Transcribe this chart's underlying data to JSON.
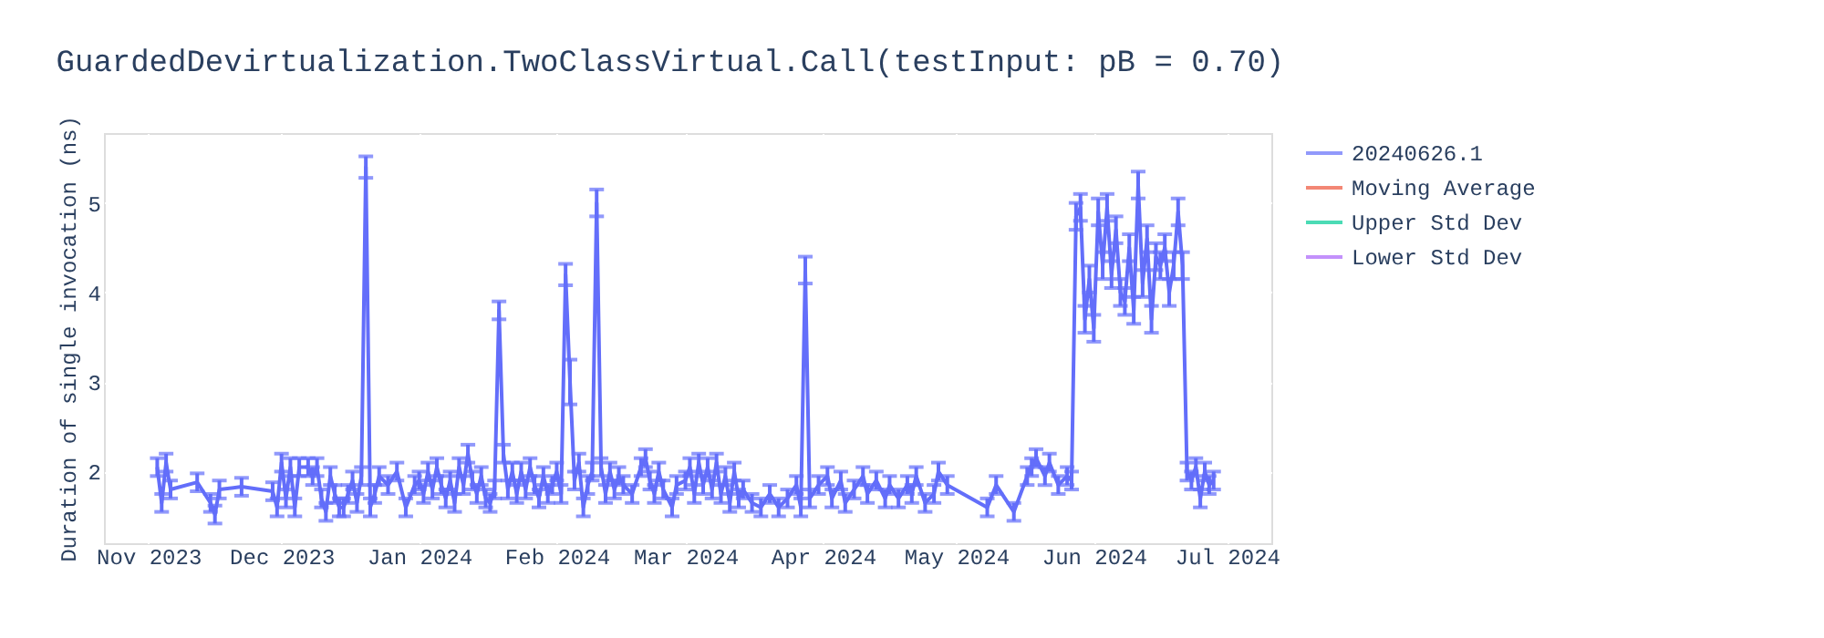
{
  "chart_data": {
    "type": "line",
    "title": "GuardedDevirtualization.TwoClassVirtual.Call(testInput: pB = 0.70)",
    "ylabel": "Duration of single invocation (ns)",
    "x": [
      "2023-11-03",
      "2023-11-04",
      "2023-11-05",
      "2023-11-06",
      "2023-11-12",
      "2023-11-15",
      "2023-11-16",
      "2023-11-17",
      "2023-11-22",
      "2023-11-29",
      "2023-11-30",
      "2023-12-01",
      "2023-12-02",
      "2023-12-03",
      "2023-12-04",
      "2023-12-05",
      "2023-12-07",
      "2023-12-08",
      "2023-12-09",
      "2023-12-10",
      "2023-12-11",
      "2023-12-12",
      "2023-12-13",
      "2023-12-14",
      "2023-12-15",
      "2023-12-16",
      "2023-12-17",
      "2023-12-18",
      "2023-12-19",
      "2023-12-20",
      "2023-12-21",
      "2023-12-22",
      "2023-12-23",
      "2023-12-25",
      "2023-12-27",
      "2023-12-29",
      "2023-12-31",
      "2024-01-01",
      "2024-01-02",
      "2024-01-03",
      "2024-01-04",
      "2024-01-05",
      "2024-01-06",
      "2024-01-07",
      "2024-01-08",
      "2024-01-09",
      "2024-01-10",
      "2024-01-11",
      "2024-01-12",
      "2024-01-13",
      "2024-01-14",
      "2024-01-15",
      "2024-01-16",
      "2024-01-17",
      "2024-01-18",
      "2024-01-19",
      "2024-01-20",
      "2024-01-21",
      "2024-01-22",
      "2024-01-23",
      "2024-01-24",
      "2024-01-25",
      "2024-01-26",
      "2024-01-27",
      "2024-01-28",
      "2024-01-29",
      "2024-01-30",
      "2024-01-31",
      "2024-02-01",
      "2024-02-02",
      "2024-02-03",
      "2024-02-04",
      "2024-02-05",
      "2024-02-06",
      "2024-02-07",
      "2024-02-08",
      "2024-02-09",
      "2024-02-10",
      "2024-02-11",
      "2024-02-12",
      "2024-02-13",
      "2024-02-14",
      "2024-02-15",
      "2024-02-16",
      "2024-02-18",
      "2024-02-20",
      "2024-02-21",
      "2024-02-22",
      "2024-02-23",
      "2024-02-24",
      "2024-02-25",
      "2024-02-27",
      "2024-02-28",
      "2024-03-01",
      "2024-03-02",
      "2024-03-03",
      "2024-03-04",
      "2024-03-05",
      "2024-03-06",
      "2024-03-07",
      "2024-03-08",
      "2024-03-09",
      "2024-03-10",
      "2024-03-11",
      "2024-03-12",
      "2024-03-13",
      "2024-03-14",
      "2024-03-16",
      "2024-03-18",
      "2024-03-20",
      "2024-03-22",
      "2024-03-24",
      "2024-03-26",
      "2024-03-27",
      "2024-03-28",
      "2024-03-29",
      "2024-03-31",
      "2024-04-02",
      "2024-04-03",
      "2024-04-05",
      "2024-04-06",
      "2024-04-08",
      "2024-04-10",
      "2024-04-11",
      "2024-04-13",
      "2024-04-15",
      "2024-04-16",
      "2024-04-18",
      "2024-04-20",
      "2024-04-21",
      "2024-04-22",
      "2024-04-24",
      "2024-04-26",
      "2024-04-27",
      "2024-04-29",
      "2024-05-08",
      "2024-05-10",
      "2024-05-14",
      "2024-05-17",
      "2024-05-18",
      "2024-05-19",
      "2024-05-21",
      "2024-05-22",
      "2024-05-24",
      "2024-05-26",
      "2024-05-27",
      "2024-05-28",
      "2024-05-29",
      "2024-05-30",
      "2024-05-31",
      "2024-06-01",
      "2024-06-02",
      "2024-06-03",
      "2024-06-04",
      "2024-06-05",
      "2024-06-06",
      "2024-06-07",
      "2024-06-08",
      "2024-06-09",
      "2024-06-10",
      "2024-06-11",
      "2024-06-12",
      "2024-06-13",
      "2024-06-14",
      "2024-06-15",
      "2024-06-16",
      "2024-06-17",
      "2024-06-18",
      "2024-06-19",
      "2024-06-20",
      "2024-06-21",
      "2024-06-22",
      "2024-06-23",
      "2024-06-24",
      "2024-06-25",
      "2024-06-26",
      "2024-06-27",
      "2024-06-28"
    ],
    "series": [
      {
        "name": "20240626.1",
        "color": "#636efa",
        "values": [
          2.05,
          1.65,
          2.1,
          1.8,
          1.88,
          1.65,
          1.52,
          1.8,
          1.83,
          1.78,
          1.6,
          2.1,
          1.7,
          2.05,
          1.6,
          2.05,
          2.05,
          1.95,
          2.05,
          1.7,
          1.55,
          1.95,
          1.75,
          1.6,
          1.6,
          1.75,
          1.9,
          1.65,
          1.95,
          5.4,
          1.6,
          1.75,
          1.95,
          1.85,
          2.0,
          1.6,
          1.85,
          1.9,
          1.75,
          2.0,
          1.8,
          2.05,
          1.85,
          1.7,
          1.9,
          1.65,
          2.05,
          1.85,
          2.2,
          1.9,
          1.75,
          1.95,
          1.7,
          1.65,
          1.8,
          3.8,
          2.2,
          1.8,
          2.0,
          1.75,
          2.0,
          1.8,
          2.05,
          1.85,
          1.7,
          1.95,
          1.75,
          1.85,
          2.0,
          1.75,
          4.2,
          3.0,
          1.9,
          2.1,
          1.6,
          1.85,
          2.0,
          5.0,
          2.05,
          1.75,
          2.0,
          1.8,
          1.95,
          1.85,
          1.75,
          2.05,
          2.15,
          1.9,
          1.75,
          2.0,
          1.8,
          1.6,
          1.85,
          1.9,
          2.05,
          1.75,
          2.1,
          1.85,
          2.05,
          1.8,
          2.1,
          1.75,
          1.95,
          1.65,
          2.0,
          1.7,
          1.8,
          1.65,
          1.6,
          1.75,
          1.6,
          1.7,
          1.85,
          1.6,
          4.25,
          1.7,
          1.85,
          1.95,
          1.7,
          1.9,
          1.65,
          1.8,
          1.95,
          1.75,
          1.9,
          1.7,
          1.85,
          1.7,
          1.85,
          1.75,
          1.95,
          1.65,
          1.75,
          2.0,
          1.85,
          1.6,
          1.85,
          1.55,
          1.95,
          2.05,
          2.15,
          1.95,
          2.1,
          1.85,
          1.95,
          1.9,
          4.85,
          4.95,
          3.7,
          4.15,
          3.6,
          4.9,
          4.3,
          4.95,
          4.2,
          4.7,
          4.0,
          3.9,
          4.5,
          3.8,
          5.2,
          4.1,
          4.6,
          3.7,
          4.4,
          4.3,
          4.5,
          4.0,
          4.3,
          4.9,
          4.3,
          2.0,
          1.9,
          2.05,
          1.7,
          2.0,
          1.85,
          1.9
        ],
        "errors": [
          0.1,
          0.1,
          0.1,
          0.1,
          0.1,
          0.1,
          0.1,
          0.1,
          0.1,
          0.1,
          0.1,
          0.1,
          0.1,
          0.1,
          0.1,
          0.1,
          0.1,
          0.1,
          0.1,
          0.1,
          0.1,
          0.1,
          0.1,
          0.1,
          0.1,
          0.1,
          0.1,
          0.1,
          0.1,
          0.12,
          0.1,
          0.1,
          0.1,
          0.1,
          0.1,
          0.1,
          0.1,
          0.1,
          0.1,
          0.1,
          0.1,
          0.1,
          0.1,
          0.1,
          0.1,
          0.1,
          0.1,
          0.1,
          0.1,
          0.1,
          0.1,
          0.1,
          0.1,
          0.1,
          0.1,
          0.1,
          0.1,
          0.1,
          0.1,
          0.1,
          0.1,
          0.1,
          0.1,
          0.1,
          0.1,
          0.1,
          0.1,
          0.1,
          0.1,
          0.1,
          0.12,
          0.25,
          0.1,
          0.1,
          0.1,
          0.1,
          0.1,
          0.15,
          0.1,
          0.1,
          0.1,
          0.1,
          0.1,
          0.1,
          0.1,
          0.1,
          0.1,
          0.1,
          0.1,
          0.1,
          0.1,
          0.1,
          0.1,
          0.1,
          0.1,
          0.1,
          0.1,
          0.1,
          0.1,
          0.1,
          0.1,
          0.1,
          0.1,
          0.1,
          0.1,
          0.1,
          0.1,
          0.1,
          0.1,
          0.1,
          0.1,
          0.1,
          0.1,
          0.1,
          0.15,
          0.1,
          0.1,
          0.1,
          0.1,
          0.1,
          0.1,
          0.1,
          0.1,
          0.1,
          0.1,
          0.1,
          0.1,
          0.1,
          0.1,
          0.1,
          0.1,
          0.1,
          0.1,
          0.1,
          0.1,
          0.1,
          0.1,
          0.1,
          0.1,
          0.1,
          0.1,
          0.1,
          0.1,
          0.1,
          0.1,
          0.1,
          0.15,
          0.15,
          0.15,
          0.15,
          0.15,
          0.15,
          0.15,
          0.15,
          0.15,
          0.15,
          0.15,
          0.15,
          0.15,
          0.15,
          0.15,
          0.15,
          0.15,
          0.15,
          0.15,
          0.15,
          0.15,
          0.15,
          0.15,
          0.15,
          0.15,
          0.1,
          0.1,
          0.1,
          0.1,
          0.1,
          0.1,
          0.1
        ]
      },
      {
        "name": "Moving Average",
        "color": "#ef553b",
        "values": [
          null,
          null,
          null,
          null,
          null,
          null,
          null,
          null,
          null,
          null,
          null,
          null,
          null,
          null,
          null,
          null,
          null,
          null,
          null,
          null,
          null,
          null,
          null,
          null,
          null,
          null,
          null,
          null,
          null,
          null,
          null,
          null,
          null,
          null,
          null,
          null,
          null,
          null,
          null,
          null,
          null,
          null,
          null,
          null,
          null,
          null,
          null,
          null,
          null,
          null,
          null,
          null,
          null,
          null,
          null,
          null,
          null,
          null,
          null,
          null,
          null,
          null,
          null,
          null,
          null,
          null,
          null,
          null,
          null,
          null,
          null,
          null,
          null,
          null,
          null,
          null,
          null,
          null,
          null,
          null,
          null,
          null,
          null,
          null,
          null,
          null,
          null,
          null,
          null,
          null,
          null,
          null,
          null,
          null,
          null,
          null,
          null,
          null,
          null,
          null,
          null,
          null,
          null,
          null,
          null,
          null,
          null,
          null,
          null,
          null,
          null,
          null,
          null,
          null,
          null,
          null,
          null,
          null,
          null,
          null,
          null,
          null,
          null,
          null,
          null,
          null,
          null,
          null,
          null,
          null,
          null,
          null,
          null,
          null,
          null,
          null,
          null,
          null,
          null,
          null,
          null,
          null,
          null,
          null,
          null,
          null,
          null,
          null,
          null,
          null,
          null,
          null,
          null,
          null,
          null,
          null,
          null,
          null,
          null,
          null,
          null,
          null,
          null,
          null,
          null,
          null,
          null,
          null,
          null,
          null,
          null,
          null,
          null,
          null,
          null,
          null,
          null,
          null
        ]
      },
      {
        "name": "Upper Std Dev",
        "color": "#00cc96",
        "values": [
          null,
          null,
          null,
          null,
          null,
          null,
          null,
          null,
          null,
          null,
          null,
          null,
          null,
          null,
          null,
          null,
          null,
          null,
          null,
          null,
          null,
          null,
          null,
          null,
          null,
          null,
          null,
          null,
          null,
          null,
          null,
          null,
          null,
          null,
          null,
          null,
          null,
          null,
          null,
          null,
          null,
          null,
          null,
          null,
          null,
          null,
          null,
          null,
          null,
          null,
          null,
          null,
          null,
          null,
          null,
          null,
          null,
          null,
          null,
          null,
          null,
          null,
          null,
          null,
          null,
          null,
          null,
          null,
          null,
          null,
          null,
          null,
          null,
          null,
          null,
          null,
          null,
          null,
          null,
          null,
          null,
          null,
          null,
          null,
          null,
          null,
          null,
          null,
          null,
          null,
          null,
          null,
          null,
          null,
          null,
          null,
          null,
          null,
          null,
          null,
          null,
          null,
          null,
          null,
          null,
          null,
          null,
          null,
          null,
          null,
          null,
          null,
          null,
          null,
          null,
          null,
          null,
          null,
          null,
          null,
          null,
          null,
          null,
          null,
          null,
          null,
          null,
          null,
          null,
          null,
          null,
          null,
          null,
          null,
          null,
          null,
          null,
          null,
          null,
          null,
          null,
          null,
          null,
          null,
          null,
          null,
          null,
          null,
          null,
          null,
          null,
          null,
          null,
          null,
          null,
          null,
          null,
          null,
          null,
          null,
          null,
          null,
          null,
          null,
          null,
          null,
          null,
          null,
          null,
          null,
          null,
          null,
          null,
          null,
          null,
          null,
          null,
          null
        ]
      },
      {
        "name": "Lower Std Dev",
        "color": "#ab63fa",
        "values": [
          null,
          null,
          null,
          null,
          null,
          null,
          null,
          null,
          null,
          null,
          null,
          null,
          null,
          null,
          null,
          null,
          null,
          null,
          null,
          null,
          null,
          null,
          null,
          null,
          null,
          null,
          null,
          null,
          null,
          null,
          null,
          null,
          null,
          null,
          null,
          null,
          null,
          null,
          null,
          null,
          null,
          null,
          null,
          null,
          null,
          null,
          null,
          null,
          null,
          null,
          null,
          null,
          null,
          null,
          null,
          null,
          null,
          null,
          null,
          null,
          null,
          null,
          null,
          null,
          null,
          null,
          null,
          null,
          null,
          null,
          null,
          null,
          null,
          null,
          null,
          null,
          null,
          null,
          null,
          null,
          null,
          null,
          null,
          null,
          null,
          null,
          null,
          null,
          null,
          null,
          null,
          null,
          null,
          null,
          null,
          null,
          null,
          null,
          null,
          null,
          null,
          null,
          null,
          null,
          null,
          null,
          null,
          null,
          null,
          null,
          null,
          null,
          null,
          null,
          null,
          null,
          null,
          null,
          null,
          null,
          null,
          null,
          null,
          null,
          null,
          null,
          null,
          null,
          null,
          null,
          null,
          null,
          null,
          null,
          null,
          null,
          null,
          null,
          null,
          null,
          null,
          null,
          null,
          null,
          null,
          null,
          null,
          null,
          null,
          null,
          null,
          null,
          null,
          null,
          null,
          null,
          null,
          null,
          null,
          null,
          null,
          null,
          null,
          null,
          null,
          null,
          null,
          null,
          null,
          null,
          null,
          null,
          null,
          null,
          null,
          null,
          null,
          null
        ]
      }
    ],
    "xlim": [
      "2023-10-22",
      "2024-07-11"
    ],
    "xticks": [
      {
        "value": "2023-11-01",
        "label": "Nov 2023"
      },
      {
        "value": "2023-12-01",
        "label": "Dec 2023"
      },
      {
        "value": "2024-01-01",
        "label": "Jan 2024"
      },
      {
        "value": "2024-02-01",
        "label": "Feb 2024"
      },
      {
        "value": "2024-03-01",
        "label": "Mar 2024"
      },
      {
        "value": "2024-04-01",
        "label": "Apr 2024"
      },
      {
        "value": "2024-05-01",
        "label": "May 2024"
      },
      {
        "value": "2024-06-01",
        "label": "Jun 2024"
      },
      {
        "value": "2024-07-01",
        "label": "Jul 2024"
      }
    ],
    "ylim": [
      1.2,
      5.78
    ],
    "yticks": [
      2,
      3,
      4,
      5
    ],
    "grid": true,
    "legend": "right",
    "marker": "none",
    "line_style": "solid"
  }
}
